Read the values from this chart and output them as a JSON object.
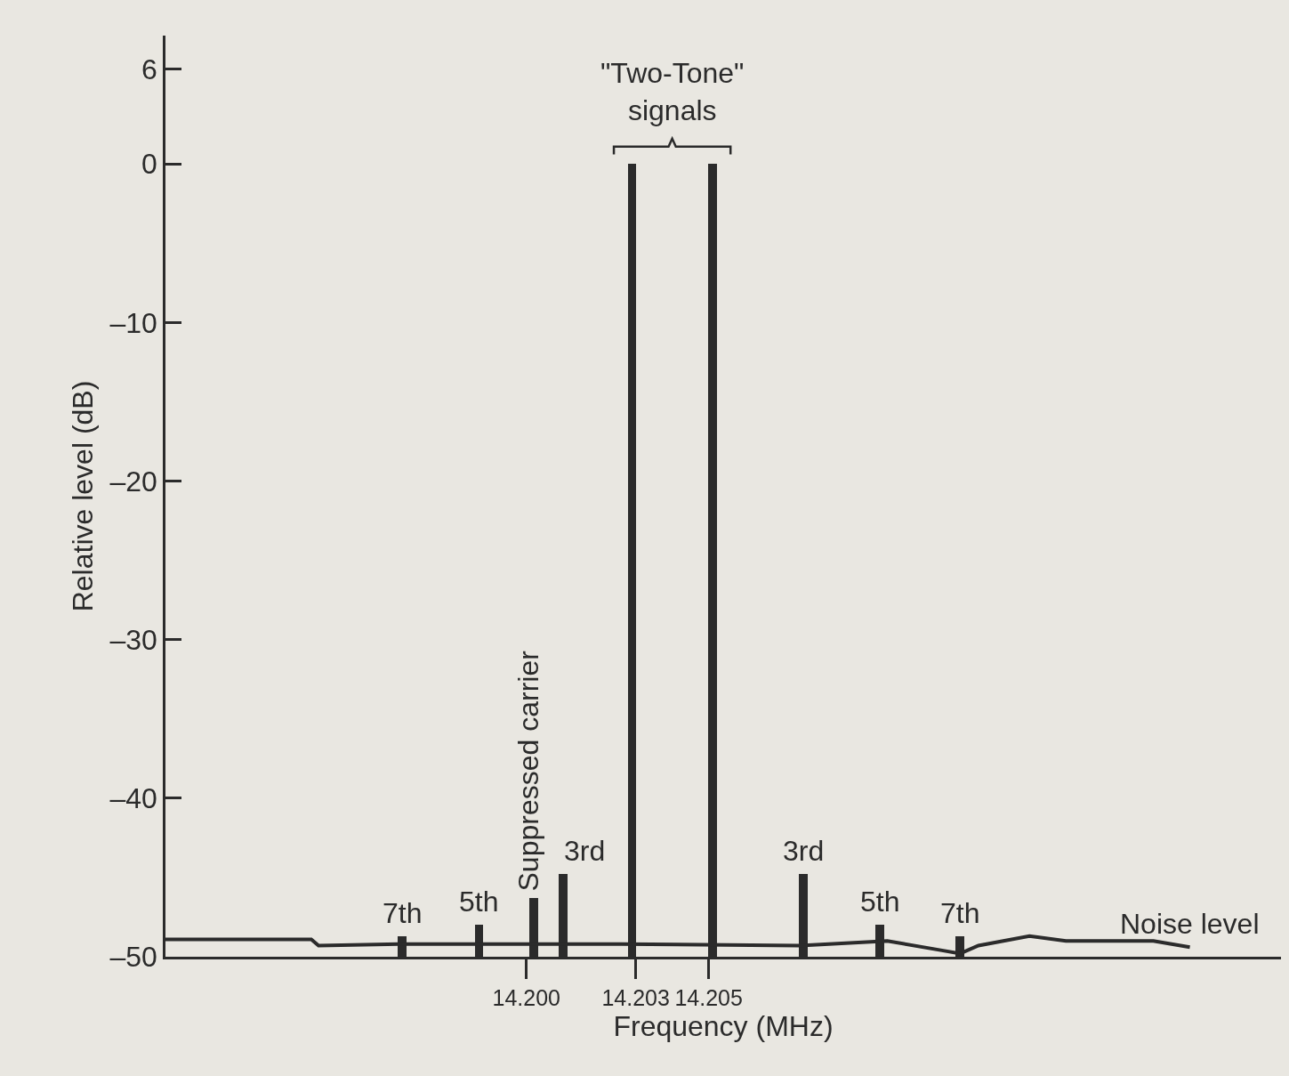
{
  "chart_data": {
    "type": "bar",
    "xlabel": "Frequency (MHz)",
    "ylabel": "Relative level (dB)",
    "xlim": [
      14.1901,
      14.2207
    ],
    "ylim": [
      -50,
      8.1
    ],
    "xticks": [
      {
        "value": 14.2,
        "label": "14.200"
      },
      {
        "value": 14.203,
        "label": "14.203"
      },
      {
        "value": 14.205,
        "label": "14.205"
      }
    ],
    "yticks": [
      6,
      0,
      {
        "value": -10,
        "label": "–10"
      },
      {
        "value": -20,
        "label": "–20"
      },
      {
        "value": -30,
        "label": "–30"
      },
      {
        "value": -40,
        "label": "–40"
      },
      {
        "value": -50,
        "label": "–50"
      }
    ],
    "grid": false,
    "series": [
      {
        "color": "#2b2b2b",
        "x": [
          14.1966,
          14.1987,
          14.2002,
          14.201,
          14.2029,
          14.2051,
          14.2076,
          14.2097,
          14.2119
        ],
        "base": [
          -50,
          -50,
          -50,
          -50,
          -50,
          -50,
          -50,
          -50,
          -50
        ],
        "values": [
          1.3,
          2,
          3.7,
          5.2,
          50,
          50,
          5.2,
          2,
          1.3
        ]
      },
      {
        "type": "line",
        "color": "#2b2b2b",
        "x": [
          14.1901,
          14.1941,
          14.1943,
          14.1965,
          14.2002,
          14.2026,
          14.2075,
          14.2099,
          14.2114,
          14.2119,
          14.2124,
          14.2138,
          14.2148,
          14.2163,
          14.2172,
          14.2182
        ],
        "values": [
          -48.9,
          -48.9,
          -49.3,
          -49.2,
          -49.2,
          -49.2,
          -49.3,
          -49.0,
          -49.6,
          -49.8,
          -49.3,
          -48.7,
          -49.0,
          -49.0,
          -49.0,
          -49.4
        ]
      }
    ],
    "annotations": [
      {
        "text": "7th",
        "x": 14.1966,
        "y": -48.7
      },
      {
        "text": "5th",
        "x": 14.1987,
        "y": -48
      },
      {
        "text": "Suppressed carrier",
        "x": 14.2002,
        "y": -46.3
      },
      {
        "text": "3rd",
        "x": 14.201,
        "y": -44.8
      },
      "\"Two-Tone\"\nsignals",
      {
        "text": "3rd",
        "x": 14.2076,
        "y": -44.8
      },
      {
        "text": "5th",
        "x": 14.2097,
        "y": -48
      },
      {
        "text": "7th",
        "x": 14.2119,
        "y": -48.7
      },
      {
        "text": "Noise level",
        "x": 14.2182,
        "y": -49.4
      }
    ]
  }
}
